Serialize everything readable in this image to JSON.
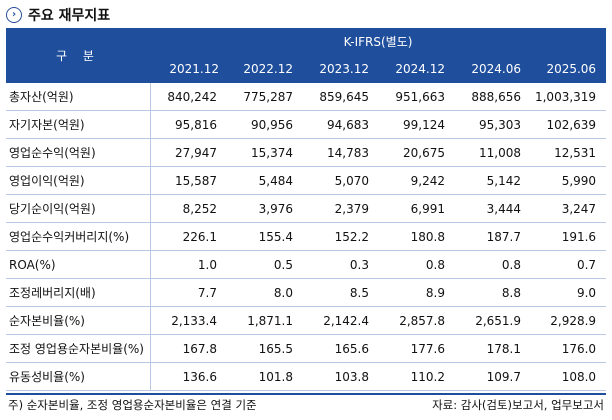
{
  "title": "주요 재무지표",
  "table": {
    "label_header": "구 분",
    "group_header": "K-IFRS(별도)",
    "columns": [
      "2021.12",
      "2022.12",
      "2023.12",
      "2024.12",
      "2024.06",
      "2025.06"
    ],
    "rows": [
      {
        "label": "총자산(억원)",
        "values": [
          "840,242",
          "775,287",
          "859,645",
          "951,663",
          "888,656",
          "1,003,319"
        ]
      },
      {
        "label": "자기자본(억원)",
        "values": [
          "95,816",
          "90,956",
          "94,683",
          "99,124",
          "95,303",
          "102,639"
        ]
      },
      {
        "label": "영업순수익(억원)",
        "values": [
          "27,947",
          "15,374",
          "14,783",
          "20,675",
          "11,008",
          "12,531"
        ]
      },
      {
        "label": "영업이익(억원)",
        "values": [
          "15,587",
          "5,484",
          "5,070",
          "9,242",
          "5,142",
          "5,990"
        ]
      },
      {
        "label": "당기순이익(억원)",
        "values": [
          "8,252",
          "3,976",
          "2,379",
          "6,991",
          "3,444",
          "3,247"
        ]
      },
      {
        "label": "영업순수익커버리지(%)",
        "values": [
          "226.1",
          "155.4",
          "152.2",
          "180.8",
          "187.7",
          "191.6"
        ]
      },
      {
        "label": "ROA(%)",
        "values": [
          "1.0",
          "0.5",
          "0.3",
          "0.8",
          "0.8",
          "0.7"
        ]
      },
      {
        "label": "조정레버리지(배)",
        "values": [
          "7.7",
          "8.0",
          "8.5",
          "8.9",
          "8.8",
          "9.0"
        ]
      },
      {
        "label": "순자본비율(%)",
        "values": [
          "2,133.4",
          "1,871.1",
          "2,142.4",
          "2,857.8",
          "2,651.9",
          "2,928.9"
        ]
      },
      {
        "label": "조정 영업용순자본비율(%)",
        "values": [
          "167.8",
          "165.5",
          "165.6",
          "177.6",
          "178.1",
          "176.0"
        ]
      },
      {
        "label": "유동성비율(%)",
        "values": [
          "136.6",
          "101.8",
          "103.8",
          "110.2",
          "109.7",
          "108.0"
        ]
      }
    ]
  },
  "footer": {
    "note": "주) 순자본비율, 조정 영업용순자본비율은 연결 기준",
    "source": "자료: 감사(검토)보고서, 업무보고서"
  },
  "colors": {
    "header_bg": "#1f4e9c",
    "accent": "#2a4f9a"
  }
}
